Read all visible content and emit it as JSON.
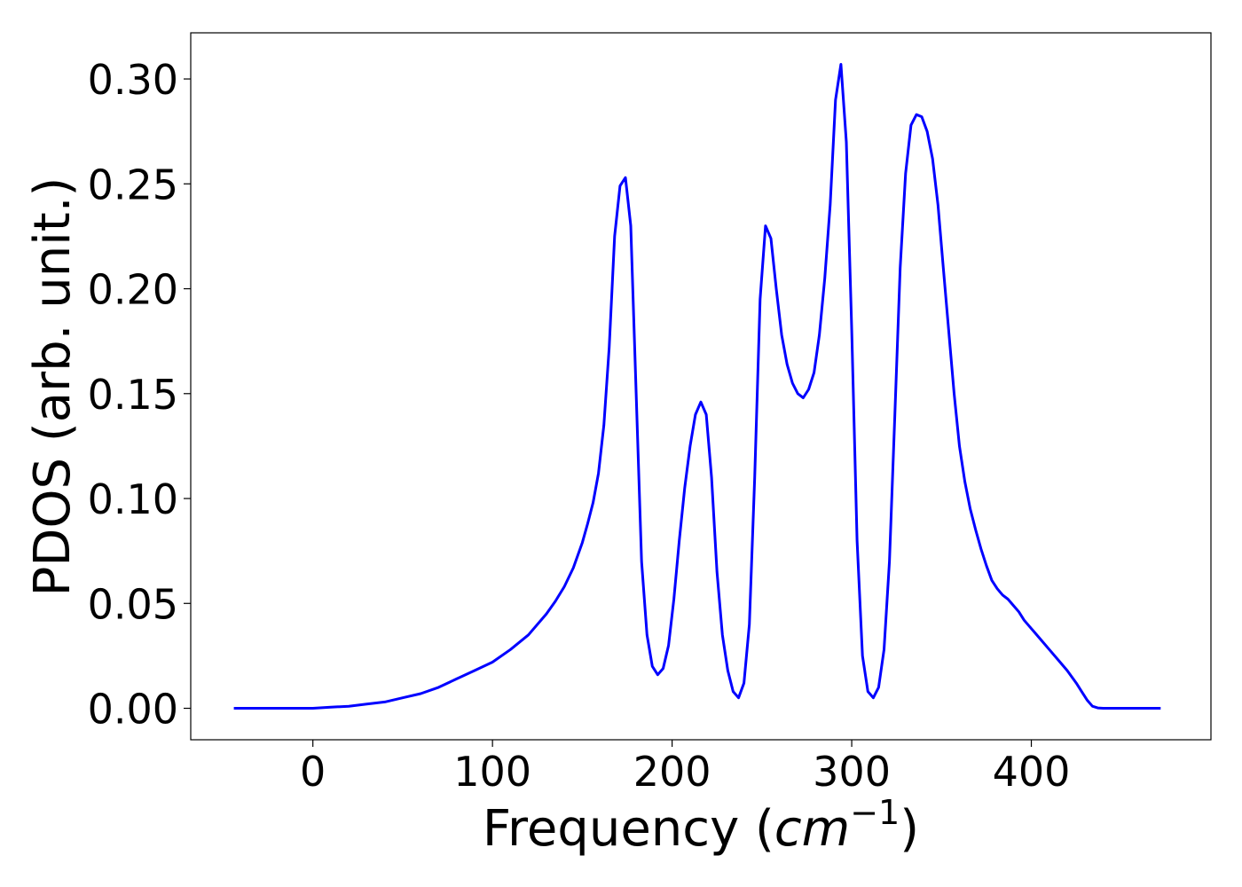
{
  "chart_data": {
    "type": "line",
    "title": "",
    "xlabel_main": "Frequency (",
    "xlabel_unit": "cm",
    "xlabel_sup": "−1",
    "xlabel_close": ")",
    "ylabel": "PDOS (arb. unit.)",
    "xlim": [
      -68,
      500
    ],
    "ylim": [
      -0.015,
      0.322
    ],
    "xticks": [
      0,
      100,
      200,
      300,
      400
    ],
    "xtick_labels": [
      "0",
      "100",
      "200",
      "300",
      "400"
    ],
    "yticks": [
      0.0,
      0.05,
      0.1,
      0.15,
      0.2,
      0.25,
      0.3
    ],
    "ytick_labels": [
      "0.00",
      "0.05",
      "0.10",
      "0.15",
      "0.20",
      "0.25",
      "0.30"
    ],
    "grid": false,
    "series": [
      {
        "color": "#0000ff",
        "x": [
          -44,
          -20,
          0,
          10,
          20,
          30,
          40,
          50,
          60,
          70,
          80,
          90,
          100,
          110,
          120,
          130,
          135,
          140,
          145,
          150,
          153,
          156,
          159,
          162,
          165,
          168,
          171,
          174,
          177,
          180,
          183,
          186,
          189,
          192,
          195,
          198,
          201,
          204,
          207,
          210,
          213,
          216,
          219,
          222,
          225,
          228,
          231,
          234,
          237,
          240,
          243,
          246,
          249,
          252,
          255,
          258,
          261,
          264,
          267,
          270,
          273,
          276,
          279,
          282,
          285,
          288,
          291,
          294,
          297,
          300,
          303,
          306,
          309,
          312,
          315,
          318,
          321,
          324,
          327,
          330,
          333,
          336,
          339,
          342,
          345,
          348,
          351,
          354,
          357,
          360,
          363,
          366,
          369,
          372,
          375,
          378,
          381,
          384,
          387,
          390,
          393,
          396,
          399,
          402,
          405,
          410,
          415,
          420,
          425,
          428,
          431,
          434,
          437,
          440,
          450,
          460,
          472
        ],
        "y": [
          0.0,
          0.0,
          0.0,
          0.0005,
          0.001,
          0.002,
          0.003,
          0.005,
          0.007,
          0.01,
          0.014,
          0.018,
          0.022,
          0.028,
          0.035,
          0.045,
          0.051,
          0.058,
          0.067,
          0.079,
          0.088,
          0.098,
          0.112,
          0.135,
          0.172,
          0.225,
          0.249,
          0.253,
          0.23,
          0.15,
          0.07,
          0.035,
          0.02,
          0.016,
          0.019,
          0.03,
          0.052,
          0.08,
          0.105,
          0.125,
          0.14,
          0.146,
          0.14,
          0.11,
          0.065,
          0.035,
          0.018,
          0.008,
          0.005,
          0.012,
          0.04,
          0.11,
          0.195,
          0.23,
          0.224,
          0.2,
          0.178,
          0.164,
          0.155,
          0.15,
          0.148,
          0.152,
          0.16,
          0.178,
          0.205,
          0.24,
          0.29,
          0.307,
          0.27,
          0.18,
          0.08,
          0.025,
          0.008,
          0.005,
          0.01,
          0.028,
          0.07,
          0.14,
          0.21,
          0.255,
          0.278,
          0.283,
          0.282,
          0.275,
          0.262,
          0.24,
          0.21,
          0.18,
          0.15,
          0.125,
          0.108,
          0.095,
          0.085,
          0.076,
          0.068,
          0.061,
          0.057,
          0.054,
          0.052,
          0.049,
          0.046,
          0.042,
          0.039,
          0.036,
          0.033,
          0.028,
          0.023,
          0.018,
          0.012,
          0.008,
          0.004,
          0.001,
          0.0002,
          0.0,
          0.0,
          0.0,
          0.0
        ]
      }
    ]
  }
}
